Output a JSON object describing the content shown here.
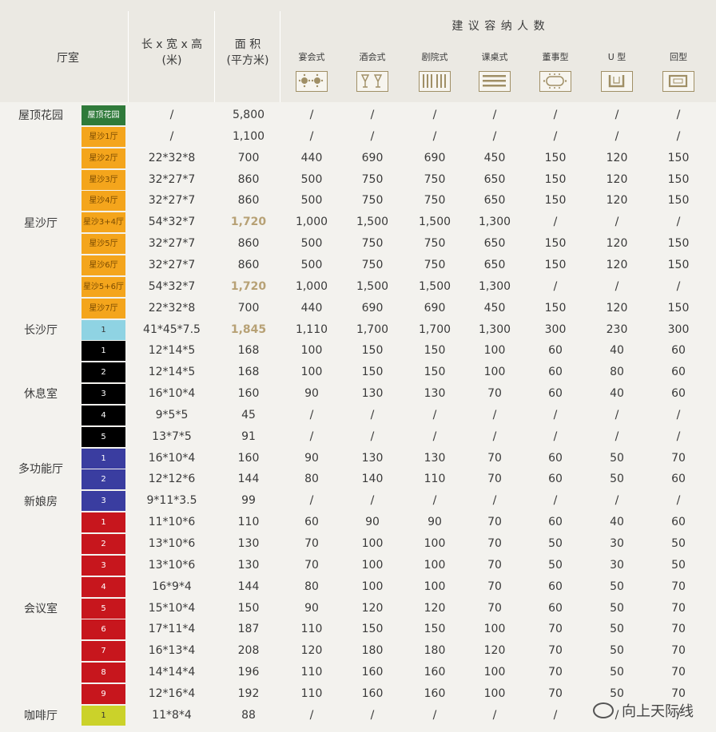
{
  "header": {
    "room": "厅室",
    "dims": "长 x 宽 x 高\n(米)",
    "area": "面 积\n(平方米)",
    "capacity": "建 议 容 纳 人 数",
    "layouts": [
      "宴会式",
      "酒会式",
      "剧院式",
      "课桌式",
      "董事型",
      "U 型",
      "回型"
    ],
    "layout_icons": [
      "banquet-icon",
      "cocktail-icon",
      "theater-icon",
      "classroom-icon",
      "boardroom-icon",
      "u-shape-icon",
      "hollow-square-icon"
    ]
  },
  "groups": [
    {
      "name": "屋顶花园",
      "rows": 1
    },
    {
      "name": "星沙厅",
      "rows": 9
    },
    {
      "name": "长沙厅",
      "rows": 1
    },
    {
      "name": "休息室",
      "rows": 5
    },
    {
      "name": "多功能厅",
      "rows": 2
    },
    {
      "name": "新娘房",
      "rows": 1
    },
    {
      "name": "会议室",
      "rows": 9
    },
    {
      "name": "咖啡厅",
      "rows": 1
    }
  ],
  "rows": [
    {
      "sub": "屋顶花园",
      "color": "#2f7a3a",
      "dims": "/",
      "area": "5,800",
      "hl": false,
      "v": [
        "/",
        "/",
        "/",
        "/",
        "/",
        "/",
        "/"
      ]
    },
    {
      "sub": "星沙1厅",
      "color": "#f4a51c",
      "dims": "/",
      "area": "1,100",
      "hl": false,
      "v": [
        "/",
        "/",
        "/",
        "/",
        "/",
        "/",
        "/"
      ]
    },
    {
      "sub": "星沙2厅",
      "color": "#f4a51c",
      "dims": "22*32*8",
      "area": "700",
      "hl": false,
      "v": [
        "440",
        "690",
        "690",
        "450",
        "150",
        "120",
        "150"
      ]
    },
    {
      "sub": "星沙3厅",
      "color": "#f4a51c",
      "dims": "32*27*7",
      "area": "860",
      "hl": false,
      "v": [
        "500",
        "750",
        "750",
        "650",
        "150",
        "120",
        "150"
      ]
    },
    {
      "sub": "星沙4厅",
      "color": "#f4a51c",
      "dims": "32*27*7",
      "area": "860",
      "hl": false,
      "v": [
        "500",
        "750",
        "750",
        "650",
        "150",
        "120",
        "150"
      ]
    },
    {
      "sub": "星沙3+4厅",
      "color": "#f4a51c",
      "dims": "54*32*7",
      "area": "1,720",
      "hl": true,
      "v": [
        "1,000",
        "1,500",
        "1,500",
        "1,300",
        "/",
        "/",
        "/"
      ]
    },
    {
      "sub": "星沙5厅",
      "color": "#f4a51c",
      "dims": "32*27*7",
      "area": "860",
      "hl": false,
      "v": [
        "500",
        "750",
        "750",
        "650",
        "150",
        "120",
        "150"
      ]
    },
    {
      "sub": "星沙6厅",
      "color": "#f4a51c",
      "dims": "32*27*7",
      "area": "860",
      "hl": false,
      "v": [
        "500",
        "750",
        "750",
        "650",
        "150",
        "120",
        "150"
      ]
    },
    {
      "sub": "星沙5+6厅",
      "color": "#f4a51c",
      "dims": "54*32*7",
      "area": "1,720",
      "hl": true,
      "v": [
        "1,000",
        "1,500",
        "1,500",
        "1,300",
        "/",
        "/",
        "/"
      ]
    },
    {
      "sub": "星沙7厅",
      "color": "#f4a51c",
      "dims": "22*32*8",
      "area": "700",
      "hl": false,
      "v": [
        "440",
        "690",
        "690",
        "450",
        "150",
        "120",
        "150"
      ]
    },
    {
      "sub": "1",
      "color": "#8fd3e3",
      "dims": "41*45*7.5",
      "area": "1,845",
      "hl": true,
      "v": [
        "1,110",
        "1,700",
        "1,700",
        "1,300",
        "300",
        "230",
        "300"
      ]
    },
    {
      "sub": "1",
      "color": "#000000",
      "dims": "12*14*5",
      "area": "168",
      "hl": false,
      "v": [
        "100",
        "150",
        "150",
        "100",
        "60",
        "40",
        "60"
      ]
    },
    {
      "sub": "2",
      "color": "#000000",
      "dims": "12*14*5",
      "area": "168",
      "hl": false,
      "v": [
        "100",
        "150",
        "150",
        "100",
        "60",
        "80",
        "60"
      ]
    },
    {
      "sub": "3",
      "color": "#000000",
      "dims": "16*10*4",
      "area": "160",
      "hl": false,
      "v": [
        "90",
        "130",
        "130",
        "70",
        "60",
        "40",
        "60"
      ]
    },
    {
      "sub": "4",
      "color": "#000000",
      "dims": "9*5*5",
      "area": "45",
      "hl": false,
      "v": [
        "/",
        "/",
        "/",
        "/",
        "/",
        "/",
        "/"
      ]
    },
    {
      "sub": "5",
      "color": "#000000",
      "dims": "13*7*5",
      "area": "91",
      "hl": false,
      "v": [
        "/",
        "/",
        "/",
        "/",
        "/",
        "/",
        "/"
      ]
    },
    {
      "sub": "1",
      "color": "#3a3da0",
      "dims": "16*10*4",
      "area": "160",
      "hl": false,
      "v": [
        "90",
        "130",
        "130",
        "70",
        "60",
        "50",
        "70"
      ]
    },
    {
      "sub": "2",
      "color": "#3a3da0",
      "dims": "12*12*6",
      "area": "144",
      "hl": false,
      "v": [
        "80",
        "140",
        "110",
        "70",
        "60",
        "50",
        "60"
      ]
    },
    {
      "sub": "3",
      "color": "#3a3da0",
      "dims": "9*11*3.5",
      "area": "99",
      "hl": false,
      "v": [
        "/",
        "/",
        "/",
        "/",
        "/",
        "/",
        "/"
      ]
    },
    {
      "sub": "1",
      "color": "#c7161d",
      "dims": "11*10*6",
      "area": "110",
      "hl": false,
      "v": [
        "60",
        "90",
        "90",
        "70",
        "60",
        "40",
        "60"
      ]
    },
    {
      "sub": "2",
      "color": "#c7161d",
      "dims": "13*10*6",
      "area": "130",
      "hl": false,
      "v": [
        "70",
        "100",
        "100",
        "70",
        "50",
        "30",
        "50"
      ]
    },
    {
      "sub": "3",
      "color": "#c7161d",
      "dims": "13*10*6",
      "area": "130",
      "hl": false,
      "v": [
        "70",
        "100",
        "100",
        "70",
        "50",
        "30",
        "50"
      ]
    },
    {
      "sub": "4",
      "color": "#c7161d",
      "dims": "16*9*4",
      "area": "144",
      "hl": false,
      "v": [
        "80",
        "100",
        "100",
        "70",
        "60",
        "50",
        "70"
      ]
    },
    {
      "sub": "5",
      "color": "#c7161d",
      "dims": "15*10*4",
      "area": "150",
      "hl": false,
      "v": [
        "90",
        "120",
        "120",
        "70",
        "60",
        "50",
        "70"
      ]
    },
    {
      "sub": "6",
      "color": "#c7161d",
      "dims": "17*11*4",
      "area": "187",
      "hl": false,
      "v": [
        "110",
        "150",
        "150",
        "100",
        "70",
        "50",
        "70"
      ]
    },
    {
      "sub": "7",
      "color": "#c7161d",
      "dims": "16*13*4",
      "area": "208",
      "hl": false,
      "v": [
        "120",
        "180",
        "180",
        "120",
        "70",
        "50",
        "70"
      ]
    },
    {
      "sub": "8",
      "color": "#c7161d",
      "dims": "14*14*4",
      "area": "196",
      "hl": false,
      "v": [
        "110",
        "160",
        "160",
        "100",
        "70",
        "50",
        "70"
      ]
    },
    {
      "sub": "9",
      "color": "#c7161d",
      "dims": "12*16*4",
      "area": "192",
      "hl": false,
      "v": [
        "110",
        "160",
        "160",
        "100",
        "70",
        "50",
        "70"
      ]
    },
    {
      "sub": "1",
      "color": "#cbd22a",
      "dims": "11*8*4",
      "area": "88",
      "hl": false,
      "v": [
        "/",
        "/",
        "/",
        "/",
        "/",
        "/",
        "/"
      ]
    }
  ],
  "watermark": "向上天际线",
  "watermark_icon": "wechat-icon"
}
